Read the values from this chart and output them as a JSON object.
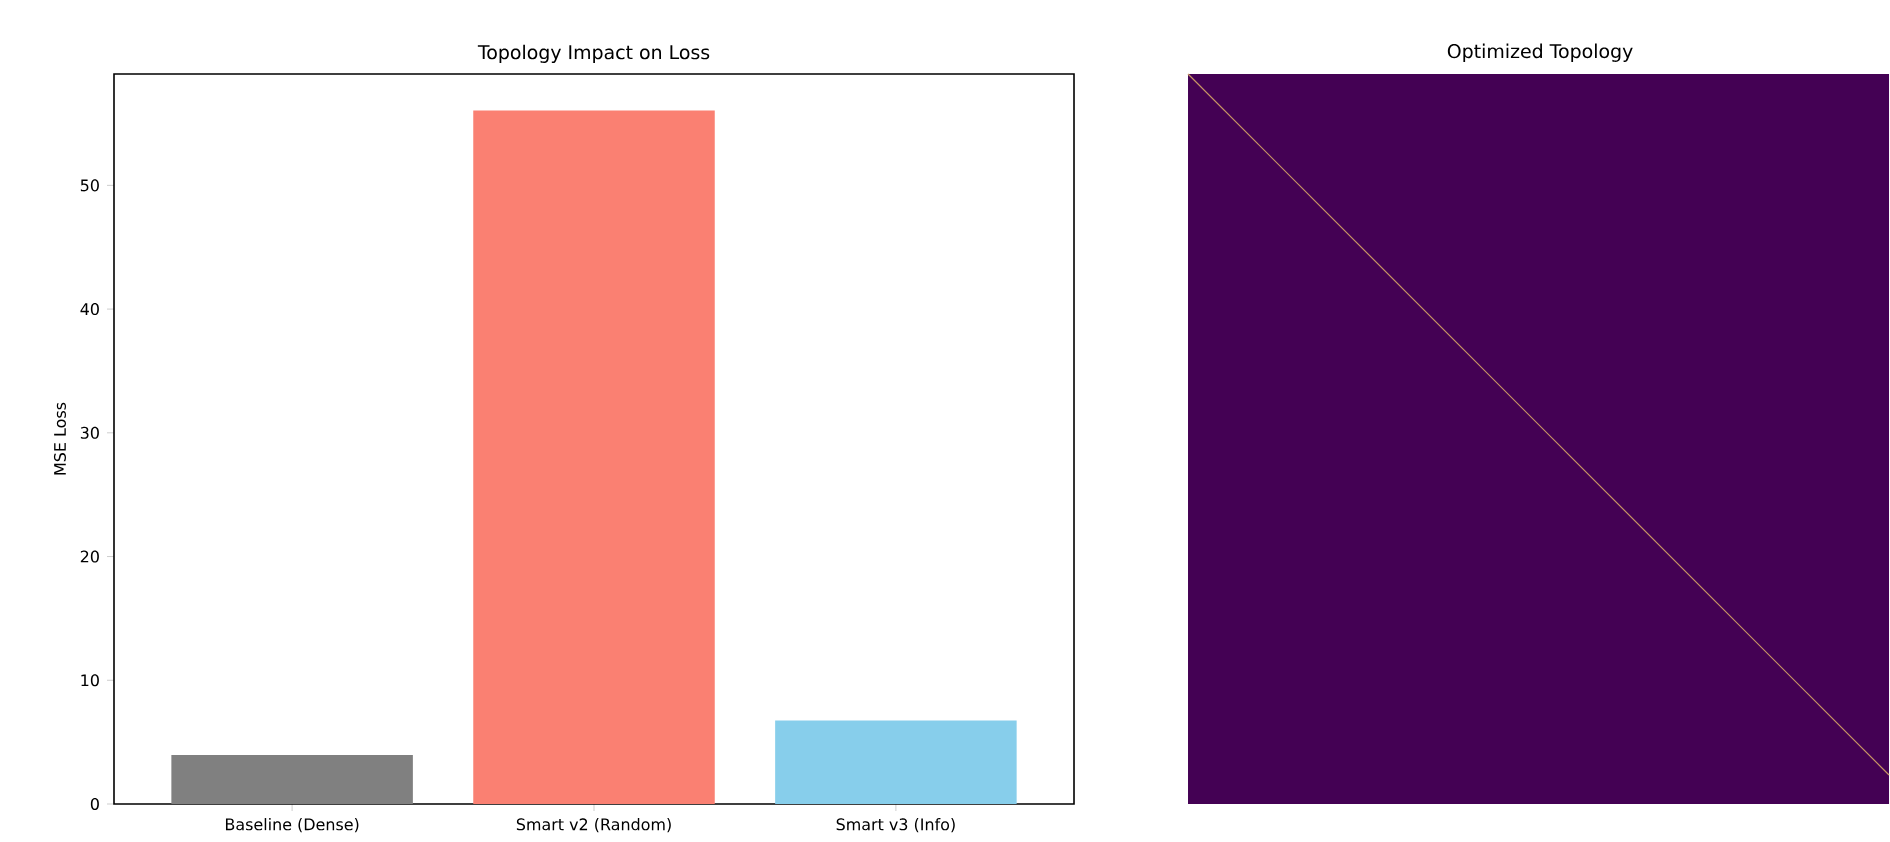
{
  "chart_data": [
    {
      "type": "bar",
      "title": "Topology Impact on Loss",
      "ylabel": "MSE Loss",
      "categories": [
        "Baseline (Dense)",
        "Smart v2 (Random)",
        "Smart v3 (Info)"
      ],
      "values": [
        3.97,
        56.05,
        6.74
      ],
      "colors": [
        "#808080",
        "#fa8072",
        "#87ceeb"
      ],
      "ylim": [
        0,
        59
      ],
      "yticks": [
        0,
        10,
        20,
        30,
        40,
        50
      ]
    },
    {
      "type": "other",
      "title": "Optimized Topology"
    }
  ]
}
